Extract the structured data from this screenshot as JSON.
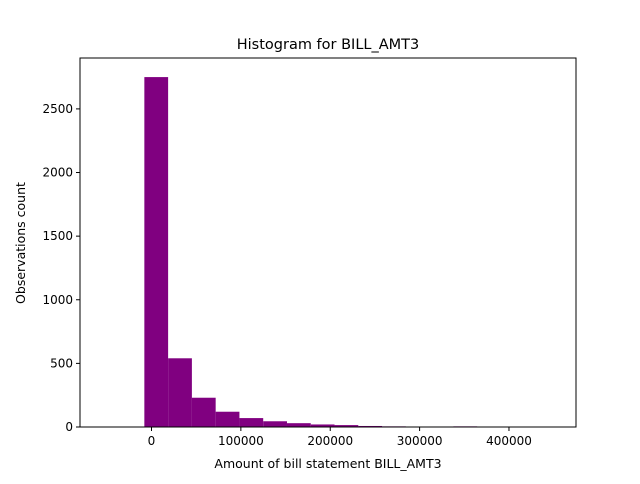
{
  "chart_data": {
    "type": "bar",
    "title": "Histogram for BILL_AMT3",
    "xlabel": "Amount of bill statement BILL_AMT3",
    "ylabel": "Observations count",
    "xlim": [
      -80000,
      475000
    ],
    "ylim": [
      0,
      2900
    ],
    "xticks": [
      0,
      100000,
      200000,
      300000,
      400000
    ],
    "xtick_labels": [
      "0",
      "100000",
      "200000",
      "300000",
      "400000"
    ],
    "yticks": [
      0,
      500,
      1000,
      1500,
      2000,
      2500
    ],
    "ytick_labels": [
      "0",
      "500",
      "1000",
      "1500",
      "2000",
      "2500"
    ],
    "bin_edges": [
      -8000,
      18600,
      45200,
      71800,
      98400,
      125000,
      151600,
      178200,
      204800,
      231400,
      258000,
      284600,
      311200,
      337800,
      364400,
      391000,
      417600,
      444200,
      470800
    ],
    "values": [
      2750,
      540,
      230,
      120,
      70,
      45,
      30,
      20,
      15,
      8,
      5,
      3,
      4,
      5,
      1,
      1,
      1,
      1
    ],
    "bar_color": "#800080",
    "grid": false,
    "legend": "none"
  }
}
